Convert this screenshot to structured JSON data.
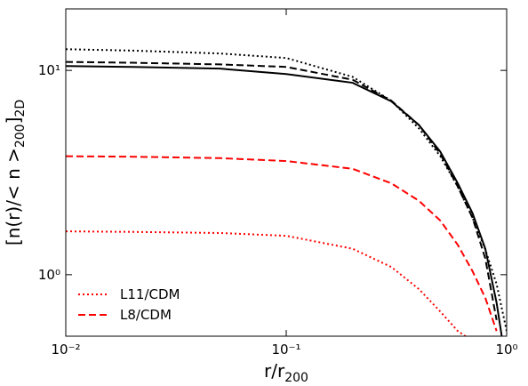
{
  "chart_data": {
    "type": "line",
    "xlabel": [
      "r/r",
      "200"
    ],
    "ylabel": [
      "[n(r)/< n >",
      "200",
      "]",
      "2D"
    ],
    "xscale": "log",
    "yscale": "log",
    "xlim": [
      0.01,
      1
    ],
    "ylim": [
      0.5,
      20
    ],
    "xticks": [
      {
        "value": 0.01,
        "label": "10⁻²"
      },
      {
        "value": 0.1,
        "label": "10⁻¹"
      },
      {
        "value": 1,
        "label": "10⁰"
      }
    ],
    "yticks": [
      {
        "value": 1,
        "label": "10⁰"
      },
      {
        "value": 10,
        "label": "10¹"
      }
    ],
    "legend": "lower left",
    "series": [
      {
        "color": "#000000",
        "dash": "solid",
        "x": [
          0.01,
          0.02,
          0.05,
          0.1,
          0.2,
          0.3,
          0.4,
          0.5,
          0.6,
          0.7,
          0.8,
          0.9,
          0.95
        ],
        "values": [
          10.5,
          10.4,
          10.2,
          9.6,
          8.7,
          7.05,
          5.4,
          4.0,
          2.8,
          2.0,
          1.34,
          0.73,
          0.5
        ]
      },
      {
        "color": "#000000",
        "dash": "dashed",
        "x": [
          0.01,
          0.02,
          0.05,
          0.1,
          0.2,
          0.3,
          0.4,
          0.5,
          0.6,
          0.7,
          0.8,
          0.9
        ],
        "values": [
          11.0,
          10.9,
          10.7,
          10.4,
          9.0,
          7.1,
          5.4,
          3.9,
          2.7,
          1.9,
          1.2,
          0.6
        ]
      },
      {
        "color": "#000000",
        "dash": "dotted",
        "x": [
          0.01,
          0.02,
          0.05,
          0.1,
          0.2,
          0.3,
          0.4,
          0.5,
          0.6,
          0.7,
          0.8,
          0.9,
          1.0
        ],
        "values": [
          12.7,
          12.5,
          12.1,
          11.5,
          9.3,
          7.1,
          5.2,
          3.8,
          2.7,
          1.9,
          1.33,
          0.9,
          0.53
        ]
      },
      {
        "name": "L11/CDM",
        "color": "#ff0000",
        "dash": "dotted",
        "x": [
          0.01,
          0.02,
          0.05,
          0.1,
          0.2,
          0.3,
          0.4,
          0.5,
          0.6,
          0.65
        ],
        "values": [
          1.63,
          1.62,
          1.6,
          1.55,
          1.34,
          1.09,
          0.85,
          0.66,
          0.53,
          0.5
        ]
      },
      {
        "name": "L8/CDM",
        "color": "#ff0000",
        "dash": "dashed",
        "x": [
          0.01,
          0.02,
          0.05,
          0.1,
          0.2,
          0.3,
          0.4,
          0.5,
          0.6,
          0.7,
          0.8,
          0.9
        ],
        "values": [
          3.8,
          3.78,
          3.72,
          3.6,
          3.3,
          2.8,
          2.3,
          1.84,
          1.4,
          1.04,
          0.77,
          0.53
        ]
      }
    ]
  }
}
